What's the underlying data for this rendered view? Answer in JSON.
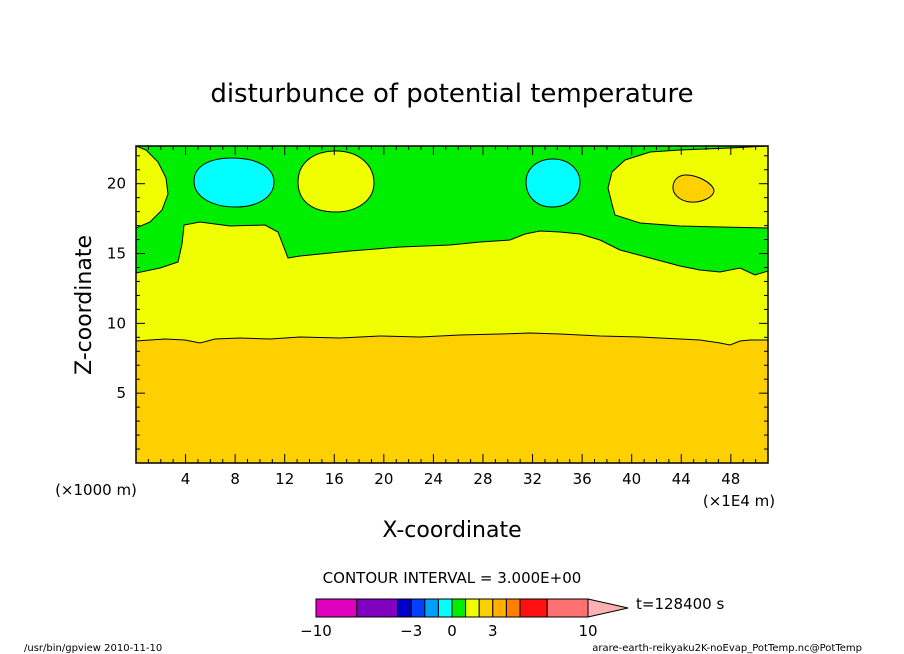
{
  "chart_data": {
    "type": "heatmap",
    "title": "disturbunce of potential temperature",
    "xlabel": "X-coordinate",
    "ylabel": "Z-coordinate",
    "x_unit_left": "(×1000 m)",
    "x_unit_right": "(×1E4 m)",
    "xlim": [
      0,
      51
    ],
    "ylim": [
      0,
      22.7
    ],
    "x_ticks": [
      4,
      8,
      12,
      16,
      20,
      24,
      28,
      32,
      36,
      40,
      44,
      48
    ],
    "y_ticks": [
      5,
      10,
      15,
      20
    ],
    "contour_interval_text": "CONTOUR INTERVAL = 3.000E+00",
    "time_label": "t=128400 s",
    "colorbar": {
      "tick_labels": [
        "−10",
        "−3",
        "0",
        "3",
        "10"
      ],
      "tick_values": [
        -10,
        -3,
        0,
        3,
        10
      ],
      "bins": [
        {
          "from": -10,
          "to": -7,
          "color": "#e000c0"
        },
        {
          "from": -7,
          "to": -4,
          "color": "#8000c0"
        },
        {
          "from": -4,
          "to": -3,
          "color": "#0000c8"
        },
        {
          "from": -3,
          "to": -2,
          "color": "#0040ff"
        },
        {
          "from": -2,
          "to": -1,
          "color": "#00a0ff"
        },
        {
          "from": -1,
          "to": 0,
          "color": "#00ffff"
        },
        {
          "from": 0,
          "to": 1,
          "color": "#00ee00"
        },
        {
          "from": 1,
          "to": 2,
          "color": "#f0ff00"
        },
        {
          "from": 2,
          "to": 3,
          "color": "#ffd000"
        },
        {
          "from": 3,
          "to": 4,
          "color": "#ffb000"
        },
        {
          "from": 4,
          "to": 5,
          "color": "#ff8000"
        },
        {
          "from": 5,
          "to": 7,
          "color": "#ff1010"
        },
        {
          "from": 7,
          "to": 10,
          "color": "#ff7070"
        },
        {
          "from": 10,
          "to": 13,
          "color": "#ffb0b0"
        }
      ]
    },
    "regions": [
      {
        "level": "below 9 (orange band)",
        "color": "#ffd000"
      },
      {
        "level": "yellow band",
        "color": "#f0ff00"
      },
      {
        "level": "upper green band",
        "color": "#00ee00"
      },
      {
        "level": "cyan cells",
        "color": "#00ffff"
      }
    ]
  },
  "footer": {
    "left": "/usr/bin/gpview   2010-11-10",
    "right": "arare-earth-reikyaku2K-noEvap_PotTemp.nc@PotTemp"
  }
}
